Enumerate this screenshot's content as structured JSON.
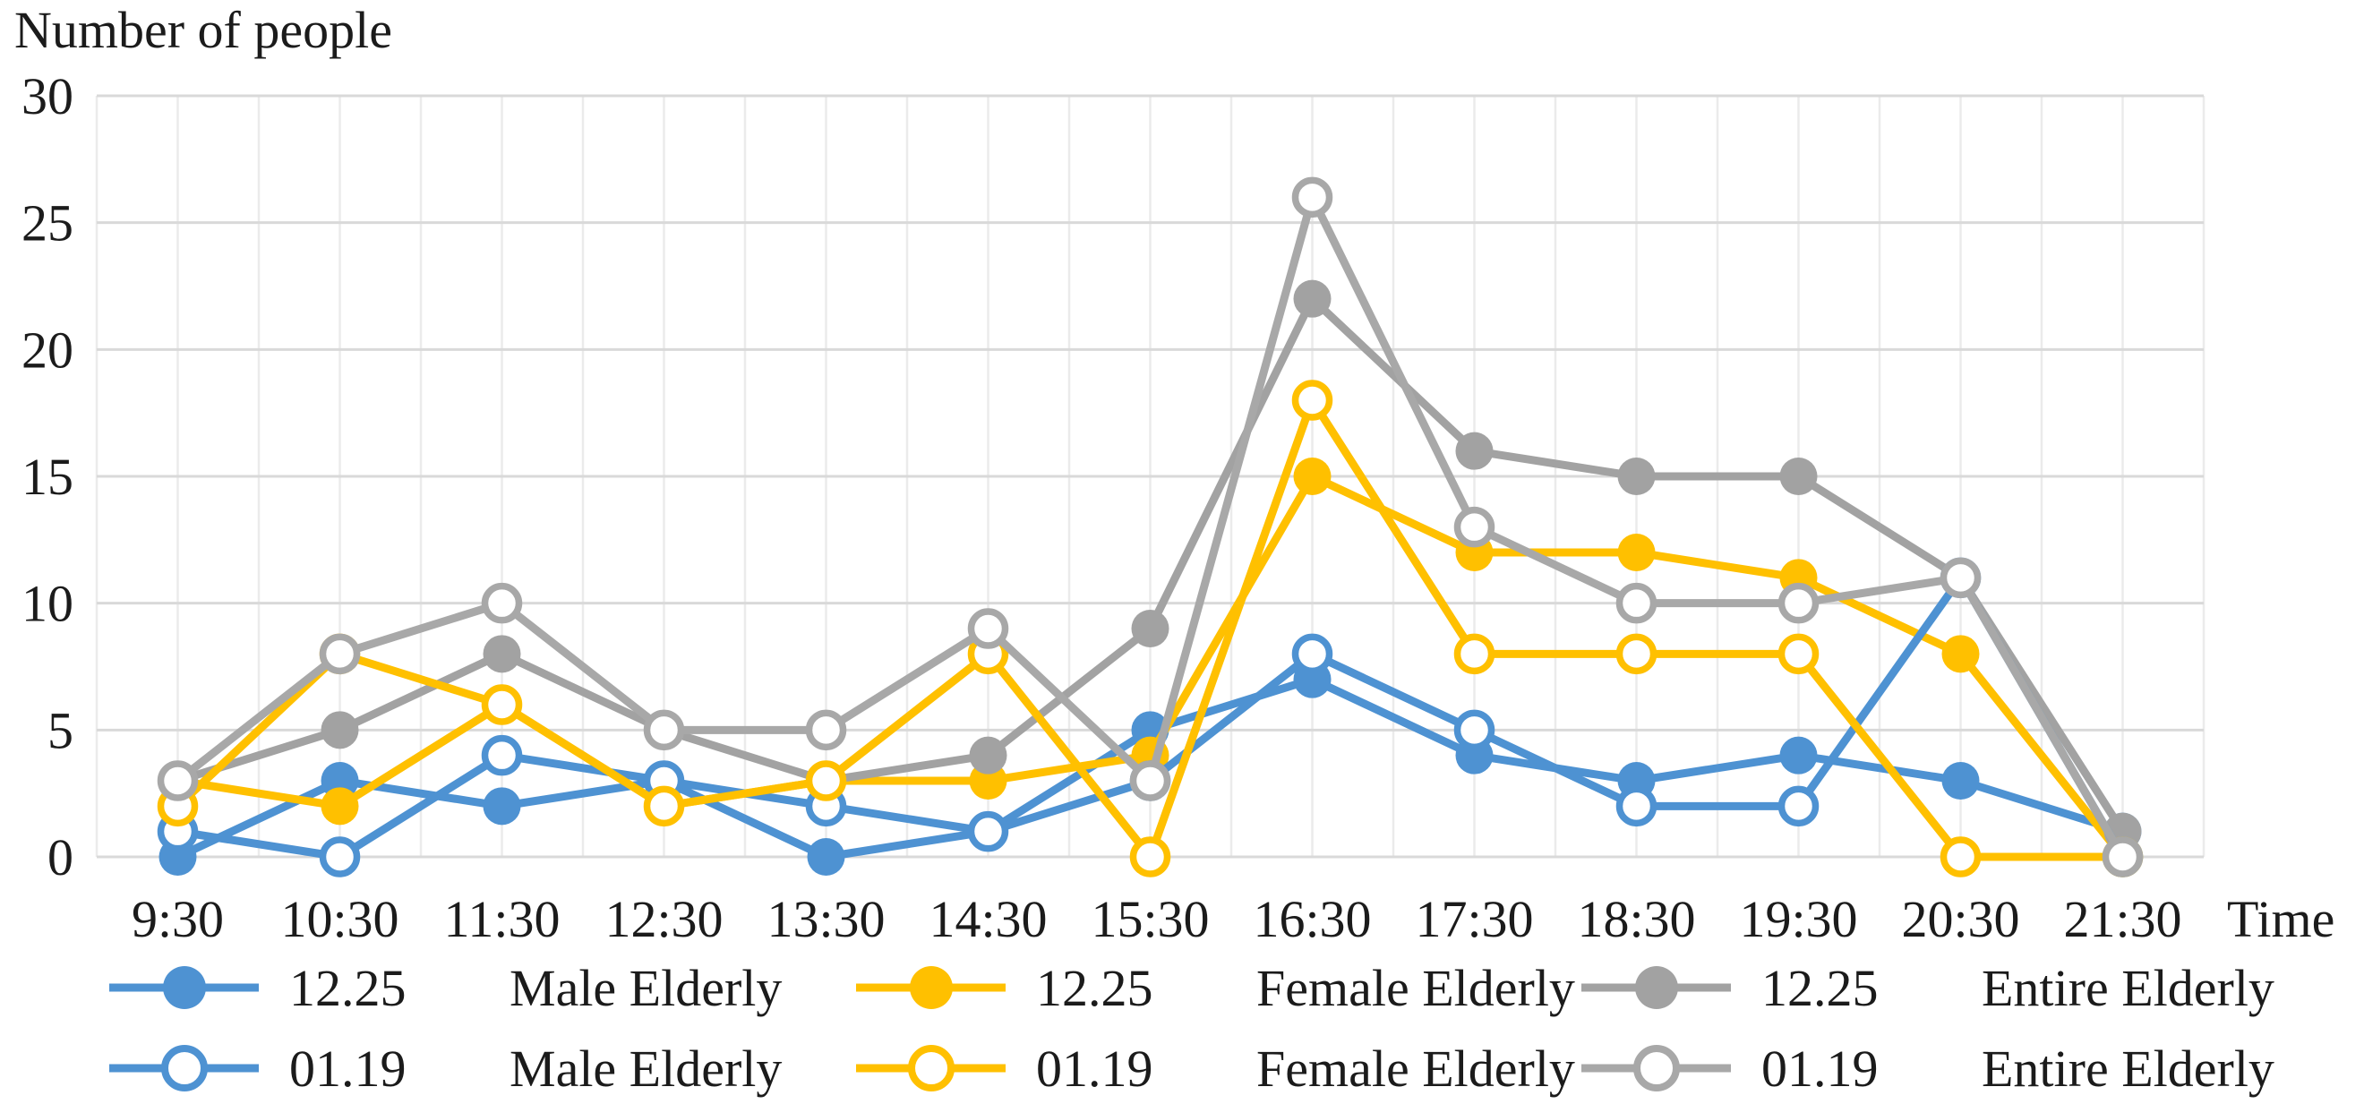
{
  "title": "Number of people",
  "x_axis_label": "Time",
  "colors": {
    "blue": "#4E92D2",
    "yellow": "#FFC000",
    "gray_filled": "#A2A2A2",
    "gray_open": "#A8A8A8",
    "grid_horizontal": "#D9D9D9",
    "grid_vertical": "#EBEBEB",
    "open_marker_fill": "#FFFFFF",
    "text": "#1B1B1B"
  },
  "chart_data": {
    "type": "line",
    "title": "Number of people",
    "xlabel": "Time",
    "ylabel": "Number of people",
    "categories": [
      "9:30",
      "10:30",
      "11:30",
      "12:30",
      "13:30",
      "14:30",
      "15:30",
      "16:30",
      "17:30",
      "18:30",
      "19:30",
      "20:30",
      "21:30"
    ],
    "ylim": [
      0,
      30
    ],
    "yticks": [
      0,
      5,
      10,
      15,
      20,
      25,
      30
    ],
    "grid": true,
    "legend_position": "bottom",
    "series": [
      {
        "name": "12.25 Male Elderly",
        "date": "12.25",
        "group": "Male Elderly",
        "color_key": "blue",
        "marker": "filled",
        "values": [
          0,
          3,
          2,
          3,
          0,
          1,
          5,
          7,
          4,
          3,
          4,
          3,
          1
        ]
      },
      {
        "name": "12.25 Female Elderly",
        "date": "12.25",
        "group": "Female Elderly",
        "color_key": "yellow",
        "marker": "filled",
        "values": [
          3,
          2,
          6,
          2,
          3,
          3,
          4,
          15,
          12,
          12,
          11,
          8,
          0
        ]
      },
      {
        "name": "12.25 Entire Elderly",
        "date": "12.25",
        "group": "Entire Elderly",
        "color_key": "gray",
        "marker": "filled",
        "values": [
          3,
          5,
          8,
          5,
          3,
          4,
          9,
          22,
          16,
          15,
          15,
          11,
          1
        ]
      },
      {
        "name": "01.19 Male Elderly",
        "date": "01.19",
        "group": "Male Elderly",
        "color_key": "blue",
        "marker": "open",
        "values": [
          1,
          0,
          4,
          3,
          2,
          1,
          3,
          8,
          5,
          2,
          2,
          11,
          0
        ]
      },
      {
        "name": "01.19 Female Elderly",
        "date": "01.19",
        "group": "Female Elderly",
        "color_key": "yellow",
        "marker": "open",
        "values": [
          2,
          8,
          6,
          2,
          3,
          8,
          0,
          18,
          8,
          8,
          8,
          0,
          0
        ]
      },
      {
        "name": "01.19 Entire Elderly",
        "date": "01.19",
        "group": "Entire Elderly",
        "color_key": "gray",
        "marker": "open",
        "values": [
          3,
          8,
          10,
          5,
          5,
          9,
          3,
          26,
          13,
          10,
          10,
          11,
          0
        ]
      }
    ]
  },
  "legend": {
    "rows": [
      [
        {
          "date": "12.25",
          "label": "Male Elderly",
          "color_key": "blue",
          "marker": "filled"
        },
        {
          "date": "12.25",
          "label": "Female Elderly",
          "color_key": "yellow",
          "marker": "filled"
        },
        {
          "date": "12.25",
          "label": "Entire Elderly",
          "color_key": "gray",
          "marker": "filled"
        }
      ],
      [
        {
          "date": "01.19",
          "label": "Male Elderly",
          "color_key": "blue",
          "marker": "open"
        },
        {
          "date": "01.19",
          "label": "Female Elderly",
          "color_key": "yellow",
          "marker": "open"
        },
        {
          "date": "01.19",
          "label": "Entire Elderly",
          "color_key": "gray",
          "marker": "open"
        }
      ]
    ]
  }
}
